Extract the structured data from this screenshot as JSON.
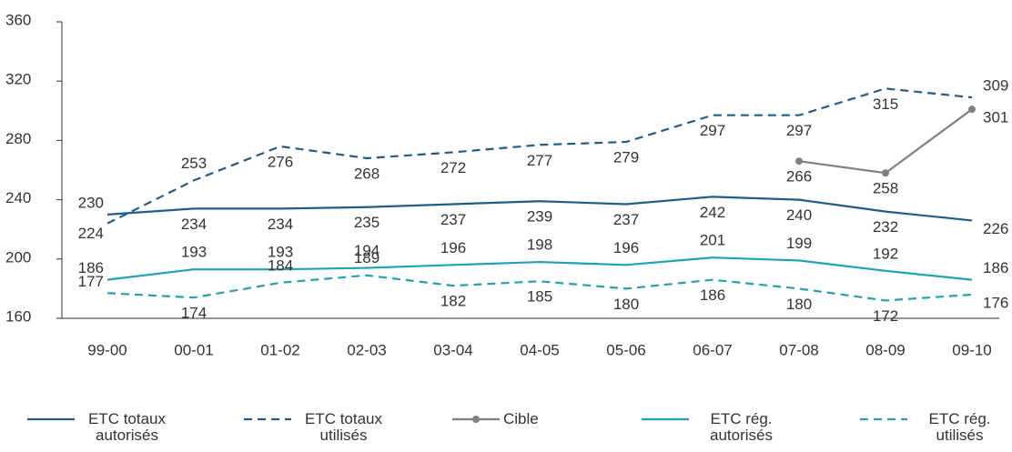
{
  "chart_data": {
    "type": "line",
    "categories": [
      "99-00",
      "00-01",
      "01-02",
      "02-03",
      "03-04",
      "04-05",
      "05-06",
      "06-07",
      "07-08",
      "08-09",
      "09-10"
    ],
    "ylim": [
      160,
      360
    ],
    "yticks": [
      160,
      200,
      240,
      280,
      320,
      360
    ],
    "legend": "bottom",
    "series": [
      {
        "name": "ETC totaux autorisés",
        "color": "#1c5d89",
        "dash": false,
        "markers": false,
        "values": [
          230,
          234,
          234,
          235,
          237,
          239,
          237,
          242,
          240,
          232,
          226
        ]
      },
      {
        "name": "ETC totaux utilisés",
        "color": "#1c5d89",
        "dash": true,
        "markers": false,
        "values": [
          224,
          253,
          276,
          268,
          272,
          277,
          279,
          297,
          297,
          315,
          309
        ]
      },
      {
        "name": "Cible",
        "color": "#808080",
        "dash": false,
        "markers": true,
        "values": [
          null,
          null,
          null,
          null,
          null,
          null,
          null,
          null,
          266,
          258,
          301
        ]
      },
      {
        "name": "ETC rég. autorisés",
        "color": "#1ea2b6",
        "dash": false,
        "markers": false,
        "values": [
          186,
          193,
          193,
          194,
          196,
          198,
          196,
          201,
          199,
          192,
          186
        ]
      },
      {
        "name": "ETC rég. utilisés",
        "color": "#1ea2b6",
        "dash": true,
        "markers": false,
        "values": [
          177,
          174,
          184,
          189,
          182,
          185,
          180,
          186,
          180,
          172,
          176
        ]
      }
    ]
  }
}
